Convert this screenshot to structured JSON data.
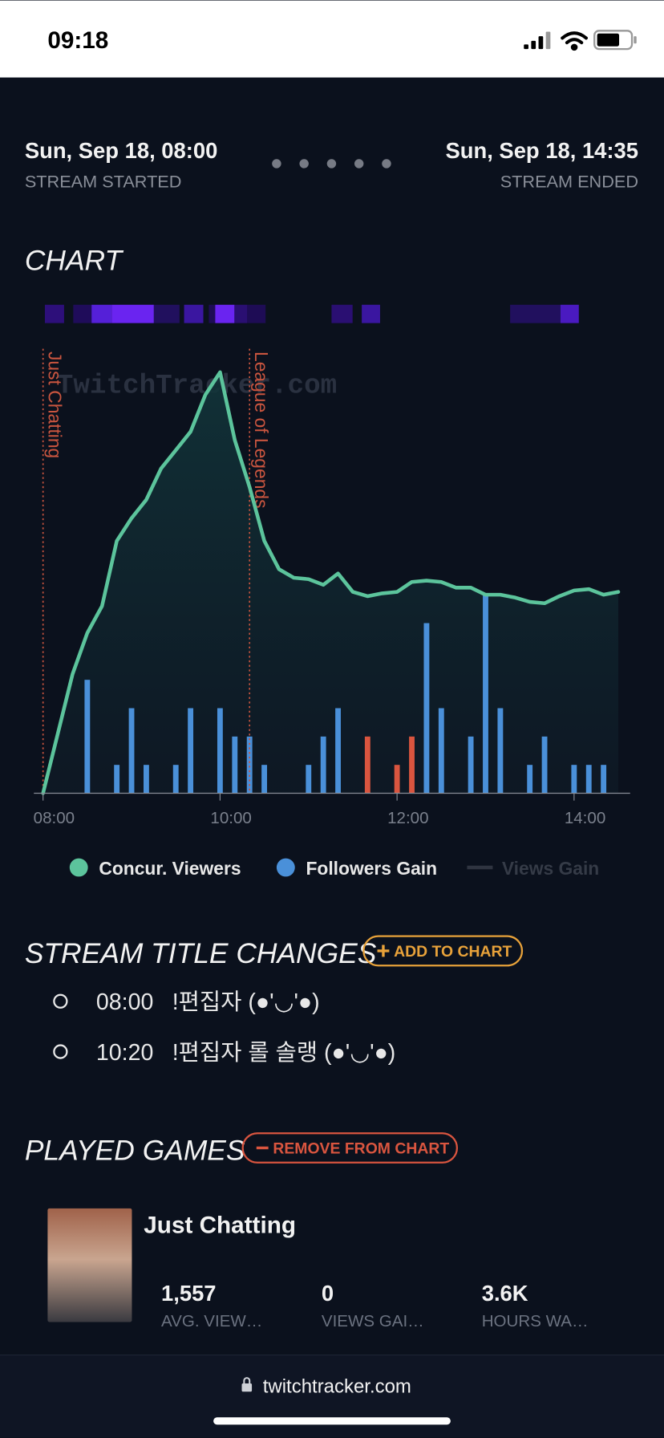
{
  "status_bar": {
    "time": "09:18"
  },
  "stream": {
    "start_time": "Sun, Sep 18, 08:00",
    "start_label": "STREAM STARTED",
    "end_time": "Sun, Sep 18, 14:35",
    "end_label": "STREAM ENDED"
  },
  "chart_heading": "CHART",
  "chart_data": {
    "type": "combo",
    "watermark": "TwitchTracker.com",
    "xlim": [
      "08:00",
      "14:38"
    ],
    "xticks": [
      "08:00",
      "10:00",
      "12:00",
      "14:00"
    ],
    "ylim": [
      0,
      3200
    ],
    "y2lim": [
      0,
      16
    ],
    "annotations": [
      {
        "x": "08:00",
        "label": "Just Chatting"
      },
      {
        "x": "10:20",
        "label": "League of Legends"
      }
    ],
    "series": [
      {
        "name": "Concur. Viewers",
        "type": "area",
        "color": "#5cc49c",
        "x": [
          "08:00",
          "08:10",
          "08:20",
          "08:30",
          "08:40",
          "08:50",
          "09:00",
          "09:10",
          "09:20",
          "09:30",
          "09:40",
          "09:50",
          "10:00",
          "10:10",
          "10:20",
          "10:30",
          "10:40",
          "10:50",
          "11:00",
          "11:10",
          "11:20",
          "11:30",
          "11:40",
          "11:50",
          "12:00",
          "12:10",
          "12:20",
          "12:30",
          "12:40",
          "12:50",
          "13:00",
          "13:10",
          "13:20",
          "13:30",
          "13:40",
          "13:50",
          "14:00",
          "14:10",
          "14:20",
          "14:30"
        ],
        "values": [
          0,
          420,
          840,
          1130,
          1320,
          1780,
          1940,
          2070,
          2290,
          2420,
          2550,
          2810,
          2970,
          2490,
          2160,
          1780,
          1580,
          1520,
          1510,
          1470,
          1550,
          1420,
          1390,
          1410,
          1420,
          1490,
          1500,
          1490,
          1450,
          1450,
          1400,
          1400,
          1380,
          1350,
          1340,
          1390,
          1430,
          1440,
          1400,
          1420
        ]
      },
      {
        "name": "Followers Gain",
        "type": "bar",
        "axis": "y2",
        "color": "#4a90d9",
        "colors": [
          "#4a90d9",
          "#4a90d9",
          "#4a90d9",
          "#4a90d9",
          "#4a90d9",
          "#4a90d9",
          "#4a90d9",
          "#4a90d9",
          "#4a90d9",
          "#4a90d9",
          "#4a90d9",
          "#4a90d9",
          "#4a90d9",
          "#d9553f",
          "#d9553f",
          "#d9553f",
          "#4a90d9",
          "#4a90d9",
          "#4a90d9",
          "#4a90d9",
          "#4a90d9",
          "#4a90d9",
          "#4a90d9",
          "#4a90d9",
          "#4a90d9",
          "#4a90d9"
        ],
        "x": [
          "08:30",
          "08:50",
          "09:00",
          "09:10",
          "09:30",
          "09:40",
          "10:00",
          "10:10",
          "10:20",
          "10:30",
          "11:00",
          "11:10",
          "11:20",
          "11:40",
          "12:00",
          "12:10",
          "12:20",
          "12:30",
          "12:50",
          "13:00",
          "13:10",
          "13:30",
          "13:40",
          "14:00",
          "14:10",
          "14:20"
        ],
        "values": [
          4,
          1,
          3,
          1,
          1,
          3,
          3,
          2,
          2,
          1,
          1,
          2,
          3,
          2,
          1,
          2,
          6,
          3,
          2,
          7,
          3,
          1,
          2,
          1,
          1,
          1
        ]
      },
      {
        "name": "Views Gain",
        "type": "bar",
        "axis": "y2",
        "color": "#2f3440",
        "hidden": true,
        "x": [],
        "values": []
      }
    ]
  },
  "title_changes": {
    "heading": "STREAM TITLE CHANGES",
    "button": "ADD TO CHART",
    "items": [
      {
        "time": "08:00",
        "title": "!편집자 (●'◡'●)"
      },
      {
        "time": "10:20",
        "title": "!편집자 롤 솔랭 (●'◡'●)"
      }
    ]
  },
  "played_games": {
    "heading": "PLAYED GAMES",
    "button": "REMOVE FROM CHART",
    "games": [
      {
        "name": "Just Chatting",
        "stats": [
          {
            "value": "1,557",
            "label": "AVG. VIEW…"
          },
          {
            "value": "0",
            "label": "VIEWS GAI…"
          },
          {
            "value": "3.6K",
            "label": "HOURS WA…"
          }
        ]
      }
    ]
  },
  "url": "twitchtracker.com"
}
